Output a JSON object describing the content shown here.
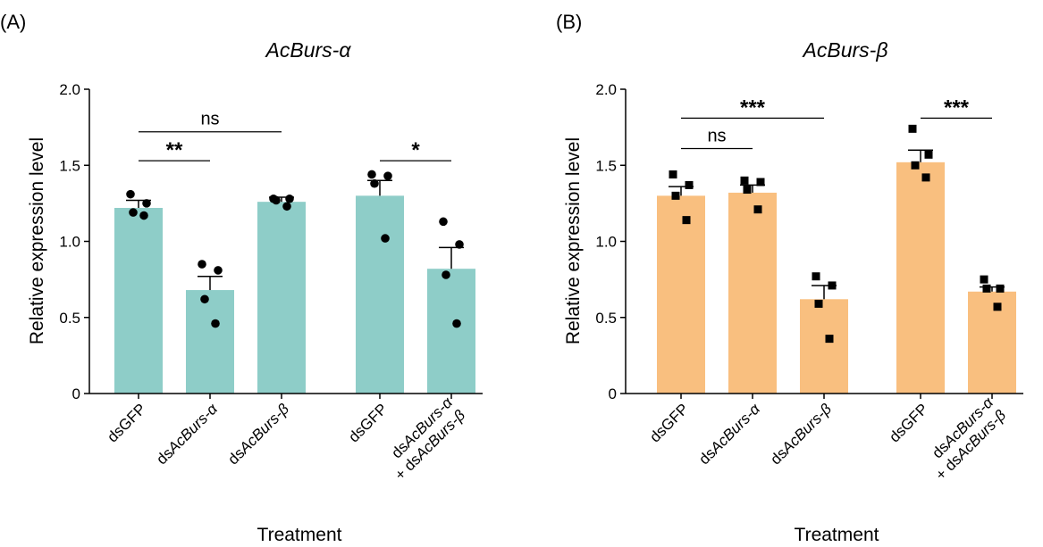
{
  "chart_data": [
    {
      "type": "bar",
      "panel_label": "(A)",
      "title": "AcBurs-α",
      "xlabel": "Treatment",
      "ylabel": "Relative expression level",
      "ylim": [
        0,
        2.0
      ],
      "yticks": [
        "0",
        "0.5",
        "1.0",
        "1.5",
        "2.0"
      ],
      "bar_color": "#8ecdc8",
      "marker": "circle",
      "categories": [
        {
          "prefix": "ds",
          "main": "GFP",
          "italic": false,
          "line2_prefix": "",
          "line2_main": ""
        },
        {
          "prefix": "ds",
          "main": "AcBurs-α",
          "italic": true,
          "line2_prefix": "",
          "line2_main": ""
        },
        {
          "prefix": "ds",
          "main": "AcBurs-β",
          "italic": true,
          "line2_prefix": "",
          "line2_main": ""
        },
        {
          "prefix": "ds",
          "main": "GFP",
          "italic": false,
          "line2_prefix": "",
          "line2_main": ""
        },
        {
          "prefix": "ds",
          "main": "AcBurs-α",
          "italic": true,
          "line2_prefix": "+ ds",
          "line2_main": "AcBurs-β"
        }
      ],
      "values": [
        1.22,
        0.68,
        1.26,
        1.3,
        0.82
      ],
      "errors": [
        0.05,
        0.09,
        0.03,
        0.1,
        0.14
      ],
      "points": [
        [
          1.31,
          1.25,
          1.19,
          1.17
        ],
        [
          0.85,
          0.81,
          0.62,
          0.46
        ],
        [
          1.28,
          1.28,
          1.27,
          1.23
        ],
        [
          1.44,
          1.43,
          1.38,
          1.02
        ],
        [
          1.13,
          0.98,
          0.78,
          0.46
        ]
      ],
      "comparisons": [
        {
          "from": 0,
          "to": 1,
          "y": 1.53,
          "label": "**"
        },
        {
          "from": 0,
          "to": 2,
          "y": 1.72,
          "label": "ns"
        },
        {
          "from": 3,
          "to": 4,
          "y": 1.53,
          "label": "*"
        }
      ]
    },
    {
      "type": "bar",
      "panel_label": "(B)",
      "title": "AcBurs-β",
      "xlabel": "Treatment",
      "ylabel": "Relative expression level",
      "ylim": [
        0,
        2.0
      ],
      "yticks": [
        "0",
        "0.5",
        "1.0",
        "1.5",
        "2.0"
      ],
      "bar_color": "#f9bf7f",
      "marker": "square",
      "categories": [
        {
          "prefix": "ds",
          "main": "GFP",
          "italic": false,
          "line2_prefix": "",
          "line2_main": ""
        },
        {
          "prefix": "ds",
          "main": "AcBurs-α",
          "italic": true,
          "line2_prefix": "",
          "line2_main": ""
        },
        {
          "prefix": "ds",
          "main": "AcBurs-β",
          "italic": true,
          "line2_prefix": "",
          "line2_main": ""
        },
        {
          "prefix": "ds",
          "main": "GFP",
          "italic": false,
          "line2_prefix": "",
          "line2_main": ""
        },
        {
          "prefix": "ds",
          "main": "AcBurs-α",
          "italic": true,
          "line2_prefix": "+ ds",
          "line2_main": "AcBurs-β"
        }
      ],
      "values": [
        1.3,
        1.32,
        0.62,
        1.52,
        0.67
      ],
      "errors": [
        0.06,
        0.05,
        0.09,
        0.08,
        0.03
      ],
      "points": [
        [
          1.44,
          1.37,
          1.3,
          1.14
        ],
        [
          1.4,
          1.39,
          1.34,
          1.21
        ],
        [
          0.77,
          0.71,
          0.59,
          0.36
        ],
        [
          1.74,
          1.57,
          1.5,
          1.42
        ],
        [
          0.75,
          0.69,
          0.69,
          0.57
        ]
      ],
      "comparisons": [
        {
          "from": 0,
          "to": 1,
          "y": 1.61,
          "label": "ns"
        },
        {
          "from": 0,
          "to": 2,
          "y": 1.81,
          "label": "***"
        },
        {
          "from": 3,
          "to": 4,
          "y": 1.81,
          "label": "***"
        }
      ]
    }
  ]
}
